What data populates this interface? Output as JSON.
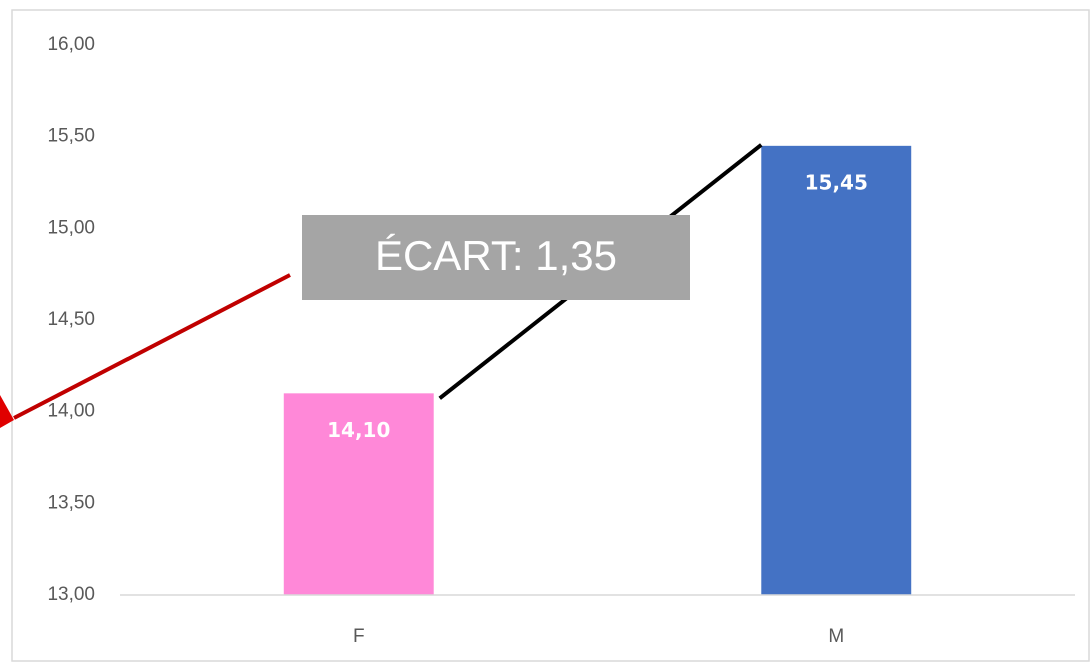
{
  "chart_data": {
    "type": "bar",
    "categories": [
      "F",
      "M"
    ],
    "values": [
      14.1,
      15.45
    ],
    "value_labels": [
      "14,10",
      "15,45"
    ],
    "colors": [
      "#ff88d8",
      "#4472c4"
    ],
    "ylim": [
      13,
      16
    ],
    "yticks": [
      {
        "value": 13,
        "label": "13,00"
      },
      {
        "value": 13.5,
        "label": "13,50"
      },
      {
        "value": 14,
        "label": "14,00"
      },
      {
        "value": 14.5,
        "label": "14,50"
      },
      {
        "value": 15,
        "label": "15,00"
      },
      {
        "value": 15.5,
        "label": "15,50"
      },
      {
        "value": 16,
        "label": "16,00"
      }
    ],
    "grid": false,
    "annotation": "ÉCART: 1,35"
  }
}
